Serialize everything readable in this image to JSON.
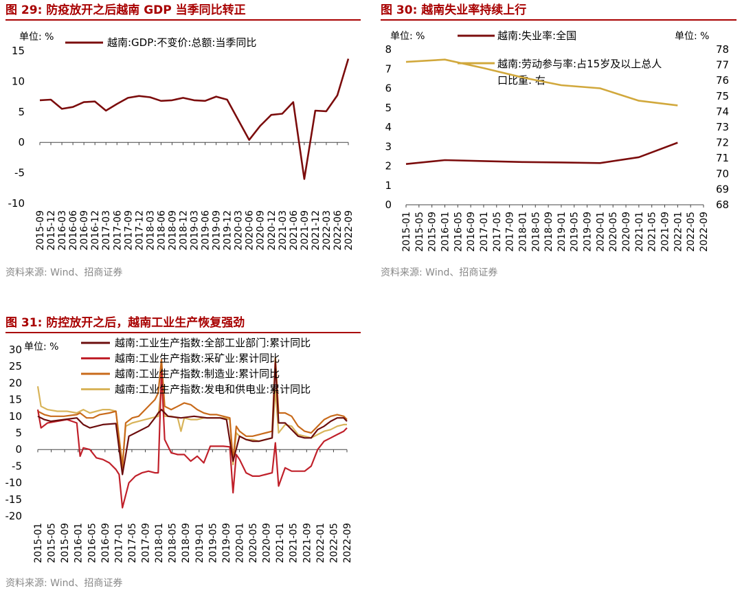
{
  "chart_data": [
    {
      "type": "line",
      "title": "图 29:  防疫放开之后越南 GDP 当季同比转正",
      "unit_left": "单位:  %",
      "ylim": [
        -10,
        15
      ],
      "yticks": [
        "15",
        "10",
        "5",
        "0",
        "-5",
        "-10"
      ],
      "categories": [
        "2015-09",
        "2015-12",
        "2016-03",
        "2016-06",
        "2016-09",
        "2016-12",
        "2017-03",
        "2017-06",
        "2017-09",
        "2017-12",
        "2018-03",
        "2018-06",
        "2018-09",
        "2018-12",
        "2019-03",
        "2019-06",
        "2019-09",
        "2019-12",
        "2020-03",
        "2020-06",
        "2020-09",
        "2020-12",
        "2021-03",
        "2021-06",
        "2021-09",
        "2021-12",
        "2022-03",
        "2022-06",
        "2022-09"
      ],
      "series": [
        {
          "name": "越南:GDP:不变价:总额:当季同比",
          "color": "#7b0c0c",
          "values": [
            6.9,
            7.0,
            5.5,
            5.8,
            6.6,
            6.7,
            5.2,
            6.3,
            7.3,
            7.6,
            7.4,
            6.8,
            6.9,
            7.3,
            6.9,
            6.8,
            7.5,
            7.0,
            3.7,
            0.4,
            2.7,
            4.5,
            4.7,
            6.6,
            -6.0,
            5.2,
            5.1,
            7.7,
            13.7
          ]
        }
      ],
      "source": "资料来源:  Wind、招商证券"
    },
    {
      "type": "line",
      "title": "图 30:  越南失业率持续上行",
      "unit_left": "单位:  %",
      "unit_right": "单位:  %",
      "ylim_left": [
        0,
        8
      ],
      "ylim_right": [
        68,
        78
      ],
      "yticks_left": [
        "8",
        "7",
        "6",
        "5",
        "4",
        "3",
        "2",
        "1",
        "0"
      ],
      "yticks_right": [
        "78",
        "77",
        "76",
        "75",
        "74",
        "73",
        "72",
        "71",
        "70",
        "69",
        "68"
      ],
      "categories": [
        "2015-01",
        "2015-05",
        "2015-09",
        "2016-01",
        "2016-05",
        "2016-09",
        "2017-01",
        "2017-05",
        "2017-09",
        "2018-01",
        "2018-05",
        "2018-09",
        "2019-01",
        "2019-05",
        "2019-09",
        "2020-01",
        "2020-05",
        "2020-09",
        "2021-01",
        "2021-05",
        "2021-09",
        "2022-01",
        "2022-05",
        "2022-09"
      ],
      "series": [
        {
          "name": "越南:失业率:全国",
          "axis": "left",
          "color": "#7b0c0c",
          "points": [
            [
              0,
              2.1
            ],
            [
              3,
              2.3
            ],
            [
              6,
              2.25
            ],
            [
              9,
              2.2
            ],
            [
              12,
              2.18
            ],
            [
              15,
              2.15
            ],
            [
              18,
              2.45
            ],
            [
              21,
              3.2
            ]
          ]
        },
        {
          "name_line1": "越南:劳动参与率:占15岁及以上总人",
          "name_line2": "口比重:  右",
          "axis": "right",
          "color": "#d1a83c",
          "points": [
            [
              0,
              77.2
            ],
            [
              3,
              77.35
            ],
            [
              6,
              76.8
            ],
            [
              9,
              76.2
            ],
            [
              12,
              75.7
            ],
            [
              15,
              75.5
            ],
            [
              18,
              74.7
            ],
            [
              21,
              74.4
            ]
          ]
        }
      ],
      "source": "资料来源:  Wind、招商证券"
    },
    {
      "type": "line",
      "title": "图 31:  防控放开之后，越南工业生产恢复强劲",
      "unit_left": "单位:  %",
      "ylim": [
        -20,
        30
      ],
      "yticks": [
        "30",
        "25",
        "20",
        "15",
        "10",
        "5",
        "0",
        "-5",
        "-10",
        "-15",
        "-20"
      ],
      "xticks": [
        "2015-01",
        "2015-05",
        "2015-09",
        "2016-01",
        "2016-05",
        "2016-09",
        "2017-01",
        "2017-05",
        "2017-09",
        "2018-01",
        "2018-05",
        "2018-09",
        "2019-01",
        "2019-05",
        "2019-09",
        "2020-01",
        "2020-05",
        "2020-09",
        "2021-01",
        "2021-05",
        "2021-09",
        "2022-01",
        "2022-05",
        "2022-09"
      ],
      "series": [
        {
          "name": "越南:工业生产指数:全部工业部门:累计同比",
          "color": "#6b0d0d",
          "points": [
            [
              0,
              10
            ],
            [
              2,
              9
            ],
            [
              4,
              8.5
            ],
            [
              8,
              9
            ],
            [
              12,
              9.5
            ],
            [
              14,
              7.5
            ],
            [
              16,
              6.5
            ],
            [
              20,
              7.5
            ],
            [
              24,
              7.8
            ],
            [
              26,
              -7.5
            ],
            [
              28,
              4
            ],
            [
              30,
              5
            ],
            [
              34,
              7
            ],
            [
              36,
              9.5
            ],
            [
              37,
              11
            ],
            [
              38,
              12
            ],
            [
              40,
              10
            ],
            [
              44,
              9.5
            ],
            [
              48,
              10
            ],
            [
              52,
              9.5
            ],
            [
              56,
              9.5
            ],
            [
              58,
              9
            ],
            [
              60,
              -3.5
            ],
            [
              62,
              4
            ],
            [
              64,
              3
            ],
            [
              66,
              2.5
            ],
            [
              68,
              2.5
            ],
            [
              70,
              3
            ],
            [
              72,
              3.5
            ],
            [
              73,
              26
            ],
            [
              74,
              8
            ],
            [
              76,
              8
            ],
            [
              78,
              6
            ],
            [
              80,
              4
            ],
            [
              82,
              3.5
            ],
            [
              84,
              3.5
            ],
            [
              86,
              6
            ],
            [
              88,
              7
            ],
            [
              90,
              8.5
            ],
            [
              92,
              9.5
            ],
            [
              94,
              9.5
            ],
            [
              95,
              8.5
            ]
          ]
        },
        {
          "name": "越南:工业生产指数:采矿业:累计同比",
          "color": "#c0202a",
          "points": [
            [
              0,
              12
            ],
            [
              1,
              6.5
            ],
            [
              3,
              8
            ],
            [
              6,
              8.5
            ],
            [
              9,
              9
            ],
            [
              12,
              8
            ],
            [
              13,
              -2
            ],
            [
              14,
              0.5
            ],
            [
              16,
              0
            ],
            [
              18,
              -2.5
            ],
            [
              20,
              -3
            ],
            [
              22,
              -4
            ],
            [
              24,
              -6
            ],
            [
              25,
              -7.5
            ],
            [
              26,
              -17.5
            ],
            [
              28,
              -10
            ],
            [
              30,
              -8
            ],
            [
              32,
              -7
            ],
            [
              34,
              -6.5
            ],
            [
              36,
              -7
            ],
            [
              37,
              -7
            ],
            [
              38,
              23.5
            ],
            [
              39,
              3
            ],
            [
              41,
              -1
            ],
            [
              43,
              -1.5
            ],
            [
              45,
              -1.5
            ],
            [
              47,
              -3.5
            ],
            [
              49,
              -2
            ],
            [
              51,
              -4
            ],
            [
              53,
              1
            ],
            [
              55,
              1
            ],
            [
              57,
              1
            ],
            [
              59,
              0.8
            ],
            [
              60,
              -13
            ],
            [
              61,
              -1.5
            ],
            [
              62,
              -3
            ],
            [
              64,
              -7
            ],
            [
              66,
              -8
            ],
            [
              68,
              -8
            ],
            [
              70,
              -7.5
            ],
            [
              72,
              -7
            ],
            [
              73,
              2
            ],
            [
              74,
              -11
            ],
            [
              76,
              -5.5
            ],
            [
              78,
              -6.5
            ],
            [
              80,
              -6.5
            ],
            [
              82,
              -6.5
            ],
            [
              84,
              -5
            ],
            [
              86,
              0
            ],
            [
              88,
              2.5
            ],
            [
              90,
              3.5
            ],
            [
              92,
              4.5
            ],
            [
              94,
              5.5
            ],
            [
              95,
              6.5
            ]
          ]
        },
        {
          "name": "越南:工业生产指数:制造业:累计同比",
          "color": "#c86a1a",
          "points": [
            [
              0,
              11.5
            ],
            [
              2,
              10.5
            ],
            [
              4,
              10
            ],
            [
              8,
              10
            ],
            [
              12,
              10.5
            ],
            [
              13,
              11
            ],
            [
              15,
              9.5
            ],
            [
              17,
              9.5
            ],
            [
              19,
              10.5
            ],
            [
              22,
              11
            ],
            [
              24,
              11.5
            ],
            [
              26,
              -5.5
            ],
            [
              27,
              8
            ],
            [
              29,
              9.5
            ],
            [
              31,
              10
            ],
            [
              33,
              12
            ],
            [
              35,
              14
            ],
            [
              36,
              15
            ],
            [
              37,
              17
            ],
            [
              38,
              27
            ],
            [
              39,
              13
            ],
            [
              41,
              12
            ],
            [
              43,
              13
            ],
            [
              45,
              14
            ],
            [
              47,
              13.5
            ],
            [
              49,
              12
            ],
            [
              51,
              11
            ],
            [
              53,
              10.5
            ],
            [
              55,
              10.5
            ],
            [
              57,
              10
            ],
            [
              59,
              9.5
            ],
            [
              60,
              -3.5
            ],
            [
              61,
              7
            ],
            [
              62,
              5.5
            ],
            [
              64,
              4
            ],
            [
              66,
              4
            ],
            [
              68,
              4.5
            ],
            [
              70,
              5
            ],
            [
              72,
              5.5
            ],
            [
              73,
              27.5
            ],
            [
              74,
              11
            ],
            [
              76,
              11
            ],
            [
              78,
              10
            ],
            [
              80,
              7
            ],
            [
              82,
              5.5
            ],
            [
              84,
              5
            ],
            [
              86,
              7
            ],
            [
              88,
              9
            ],
            [
              90,
              10
            ],
            [
              92,
              10.5
            ],
            [
              94,
              10
            ],
            [
              95,
              9
            ]
          ]
        },
        {
          "name": "越南:工业生产指数:发电和供电业:累计同比",
          "color": "#d8b45a",
          "points": [
            [
              0,
              19
            ],
            [
              1,
              13
            ],
            [
              3,
              12
            ],
            [
              6,
              11.5
            ],
            [
              9,
              11.5
            ],
            [
              12,
              11
            ],
            [
              14,
              12
            ],
            [
              16,
              11
            ],
            [
              18,
              11.5
            ],
            [
              20,
              12
            ],
            [
              22,
              12
            ],
            [
              24,
              11.5
            ],
            [
              26,
              -4.5
            ],
            [
              27,
              7
            ],
            [
              29,
              8
            ],
            [
              31,
              8.5
            ],
            [
              33,
              9
            ],
            [
              35,
              9.5
            ],
            [
              37,
              10
            ],
            [
              38,
              19
            ],
            [
              39,
              10
            ],
            [
              41,
              10
            ],
            [
              43,
              9.5
            ],
            [
              44,
              5.5
            ],
            [
              45,
              9.5
            ],
            [
              47,
              9
            ],
            [
              49,
              9
            ],
            [
              51,
              9.5
            ],
            [
              53,
              9.5
            ],
            [
              55,
              9.5
            ],
            [
              57,
              9.5
            ],
            [
              59,
              9
            ],
            [
              60,
              -4.5
            ],
            [
              61,
              5
            ],
            [
              62,
              4
            ],
            [
              64,
              3
            ],
            [
              66,
              3
            ],
            [
              68,
              2.5
            ],
            [
              70,
              3
            ],
            [
              72,
              3.5
            ],
            [
              73,
              18
            ],
            [
              74,
              5
            ],
            [
              76,
              7.5
            ],
            [
              78,
              7
            ],
            [
              80,
              4.5
            ],
            [
              82,
              4
            ],
            [
              84,
              3.5
            ],
            [
              86,
              4.5
            ],
            [
              88,
              5.5
            ],
            [
              90,
              6
            ],
            [
              92,
              7
            ],
            [
              94,
              7.5
            ],
            [
              95,
              7.5
            ]
          ]
        }
      ],
      "source": "资料来源:  Wind、招商证券"
    }
  ]
}
